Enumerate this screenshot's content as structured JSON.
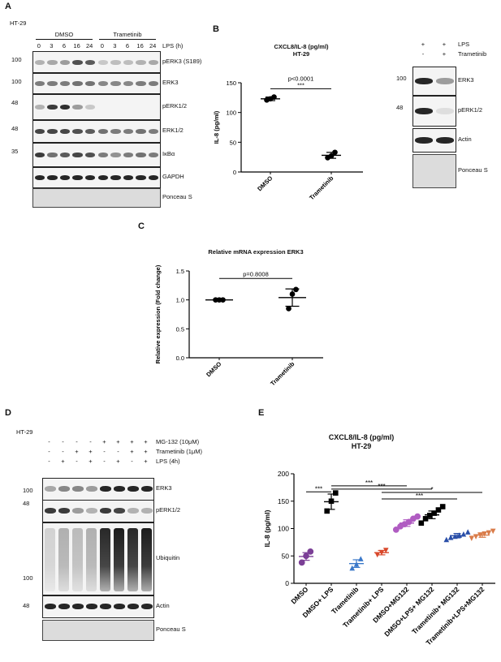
{
  "panelA": {
    "letter": "A",
    "cell_line": "HT-29",
    "groups": [
      "DMSO",
      "Trametinib"
    ],
    "lps_label": "LPS (h)",
    "timepoints": [
      "0",
      "3",
      "6",
      "16",
      "24",
      "0",
      "3",
      "6",
      "16",
      "24"
    ],
    "blots": [
      {
        "label": "pERK3 (S189)",
        "mw": "100"
      },
      {
        "label": "ERK3",
        "mw": "100"
      },
      {
        "label": "pERK1/2",
        "mw": "48"
      },
      {
        "label": "ERK1/2",
        "mw": "48"
      },
      {
        "label": "IκBα",
        "mw": "35"
      },
      {
        "label": "GAPDH",
        "mw": ""
      },
      {
        "label": "Ponceau S",
        "mw": ""
      }
    ]
  },
  "panelB": {
    "letter": "B",
    "chart_title": "CXCL8/IL-8 (pg/ml)",
    "chart_subtitle": "HT-29",
    "blot_headers": [
      "LPS",
      "Trametinib"
    ],
    "blot_signs": [
      [
        "+",
        "+"
      ],
      [
        "-",
        "+"
      ]
    ],
    "blots": [
      {
        "label": "ERK3",
        "mw": "100"
      },
      {
        "label": "pERK1/2",
        "mw": "48"
      },
      {
        "label": "Actin",
        "mw": ""
      },
      {
        "label": "Ponceau S",
        "mw": ""
      }
    ]
  },
  "panelC": {
    "letter": "C",
    "chart_title": "Relative mRNA expression ERK3"
  },
  "panelD": {
    "letter": "D",
    "cell_line": "HT-29",
    "treatments": [
      {
        "label": "MG-132 (10μM)",
        "signs": [
          "-",
          "-",
          "-",
          "-",
          "+",
          "+",
          "+",
          "+"
        ]
      },
      {
        "label": "Trametinib (1μM)",
        "signs": [
          "-",
          "-",
          "+",
          "+",
          "-",
          "-",
          "+",
          "+"
        ]
      },
      {
        "label": "LPS (4h)",
        "signs": [
          "-",
          "+",
          "-",
          "+",
          "-",
          "+",
          "-",
          "+"
        ]
      }
    ],
    "blots": [
      {
        "label": "ERK3",
        "mw": "100"
      },
      {
        "label": "pERK1/2",
        "mw": "48"
      },
      {
        "label": "Ubiquitin",
        "mw": "100"
      },
      {
        "label": "Actin",
        "mw": "48"
      },
      {
        "label": "Ponceau S",
        "mw": ""
      }
    ]
  },
  "panelE": {
    "letter": "E",
    "chart_title": "CXCL8/IL-8 (pg/ml)",
    "chart_subtitle": "HT-29"
  },
  "chart_data": [
    {
      "type": "scatter",
      "panel": "B",
      "title": "CXCL8/IL-8 (pg/ml)",
      "subtitle": "HT-29",
      "ylabel": "IL-8 (pg/ml)",
      "ylim": [
        0,
        150
      ],
      "yticks": [
        0,
        50,
        100,
        150
      ],
      "categories": [
        "DMSO",
        "Trametinib"
      ],
      "points": [
        [
          121,
          123,
          126
        ],
        [
          24,
          27,
          33
        ]
      ],
      "means": [
        123,
        28
      ],
      "errors": [
        3,
        5
      ],
      "colors": [
        "#000000",
        "#000000"
      ],
      "annotations": [
        {
          "text": "p<0.0001"
        },
        {
          "text": "***"
        }
      ]
    },
    {
      "type": "scatter",
      "panel": "C",
      "title": "Relative mRNA expression ERK3",
      "ylabel": "Relative expression (Fold change)",
      "ylim": [
        0,
        1.5
      ],
      "yticks": [
        "0.0",
        "0.5",
        "1.0",
        "1.5"
      ],
      "categories": [
        "DMSO",
        "Trametinib"
      ],
      "points": [
        [
          1.0,
          1.0,
          1.0
        ],
        [
          0.85,
          1.1,
          1.18
        ]
      ],
      "means": [
        1.0,
        1.04
      ],
      "errors": [
        0.0,
        0.15
      ],
      "colors": [
        "#000000",
        "#000000"
      ],
      "annotations": [
        {
          "text": "p=0.8008"
        }
      ]
    },
    {
      "type": "scatter",
      "panel": "E",
      "title": "CXCL8/IL-8 (pg/ml)",
      "subtitle": "HT-29",
      "ylabel": "IL-8 (pg/ml)",
      "ylim": [
        0,
        200
      ],
      "yticks": [
        0,
        50,
        100,
        150,
        200
      ],
      "categories": [
        "DMSO",
        "DMSO+ LPS",
        "Trametinib",
        "Trametinib+ LPS",
        "DMSO+MG132",
        "DMSO+LPS+ MG132",
        "Trametinib+ MG132",
        "Trametinib+LPS+MG132"
      ],
      "points": [
        [
          38,
          50,
          58
        ],
        [
          132,
          150,
          165
        ],
        [
          28,
          35,
          45
        ],
        [
          52,
          56,
          60
        ],
        [
          98,
          104,
          108,
          112,
          118,
          122
        ],
        [
          110,
          118,
          124,
          128,
          134,
          140
        ],
        [
          80,
          84,
          86,
          88,
          90,
          94
        ],
        [
          82,
          85,
          88,
          90,
          92,
          95
        ]
      ],
      "means": [
        49,
        149,
        36,
        56,
        110,
        125,
        87,
        88
      ],
      "errors": [
        7,
        14,
        7,
        4,
        6,
        7,
        4,
        4
      ],
      "colors": [
        "#7b3f96",
        "#000000",
        "#3a78c9",
        "#d9482b",
        "#b05cc2",
        "#000000",
        "#2a4fa8",
        "#d97c4a"
      ],
      "open_markers": [
        false,
        false,
        false,
        false,
        false,
        true,
        false,
        false
      ],
      "significance": [
        {
          "text": "***"
        },
        {
          "text": "***"
        },
        {
          "text": "***"
        },
        {
          "text": "***"
        },
        {
          "text": "*"
        }
      ]
    }
  ]
}
